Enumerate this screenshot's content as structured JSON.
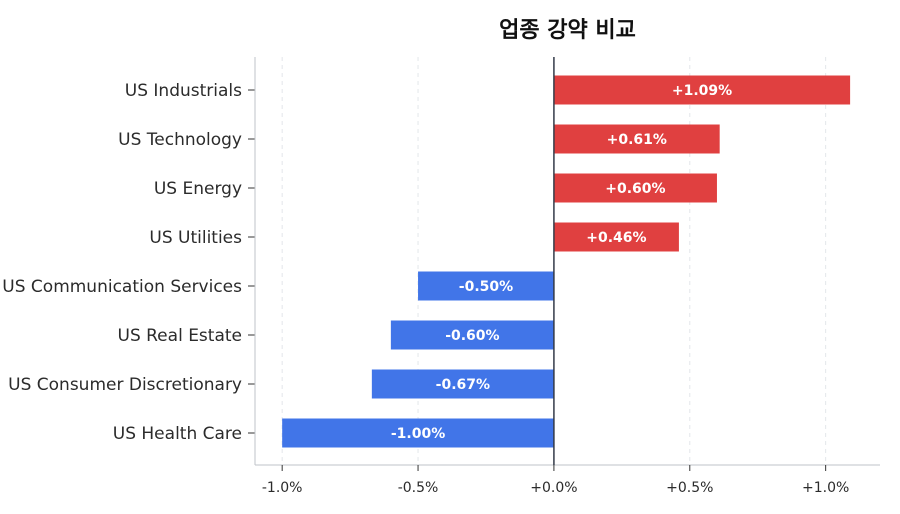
{
  "chart_data": {
    "type": "bar",
    "orientation": "horizontal",
    "title": "업종 강약 비교",
    "categories": [
      "US Industrials",
      "US Technology",
      "US Energy",
      "US Utilities",
      "US Communication Services",
      "US Real Estate",
      "US Consumer Discretionary",
      "US Health Care"
    ],
    "values": [
      1.09,
      0.61,
      0.6,
      0.46,
      -0.5,
      -0.6,
      -0.67,
      -1.0
    ],
    "data_labels": [
      "+1.09%",
      "+0.61%",
      "+0.60%",
      "+0.46%",
      "-0.50%",
      "-0.60%",
      "-0.67%",
      "-1.00%"
    ],
    "xlim": [
      -1.1,
      1.2
    ],
    "xticks": [
      -1.0,
      -0.5,
      0.0,
      0.5,
      1.0
    ],
    "xtick_labels": [
      "-1.0%",
      "-0.5%",
      "+0.0%",
      "+0.5%",
      "+1.0%"
    ],
    "grid": "vertical dashed",
    "colors": {
      "positive": "#e04040",
      "negative": "#4175e8",
      "zero_line": "#333a48"
    }
  }
}
